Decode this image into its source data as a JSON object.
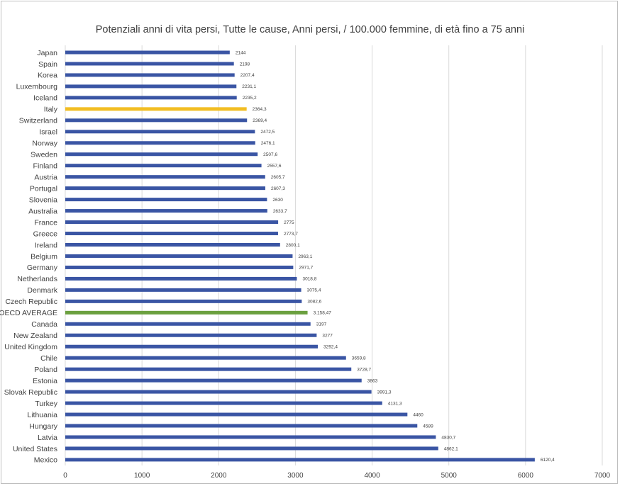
{
  "chart_data": {
    "type": "bar",
    "orientation": "horizontal",
    "title": "Potenziali anni di vita persi, Tutte le cause, Anni persi, / 100.000 femmine, di età fino a 75 anni",
    "xlim": [
      0,
      7000
    ],
    "x_ticks": [
      "0",
      "1000",
      "2000",
      "3000",
      "4000",
      "5000",
      "6000",
      "7000"
    ],
    "grid": "vertical",
    "colors": {
      "default": "#3a55a4",
      "italy": "#f2bd22",
      "oecd": "#6ba03f"
    },
    "categories": [
      "Japan",
      "Spain",
      "Korea",
      "Luxembourg",
      "Iceland",
      "Italy",
      "Switzerland",
      "Israel",
      "Norway",
      "Sweden",
      "Finland",
      "Austria",
      "Portugal",
      "Slovenia",
      "Australia",
      "France",
      "Greece",
      "Ireland",
      "Belgium",
      "Germany",
      "Netherlands",
      "Denmark",
      "Czech Republic",
      "OECD AVERAGE",
      "Canada",
      "New Zealand",
      "United Kingdom",
      "Chile",
      "Poland",
      "Estonia",
      "Slovak Republic",
      "Turkey",
      "Lithuania",
      "Hungary",
      "Latvia",
      "United States",
      "Mexico"
    ],
    "values": [
      2144,
      2198,
      2207.4,
      2231.1,
      2235.2,
      2364.3,
      2369.4,
      2472.5,
      2476.1,
      2507.6,
      2557.6,
      2605.7,
      2607.3,
      2630,
      2633.7,
      2775,
      2773.7,
      2800.1,
      2963.1,
      2971.7,
      3018.8,
      3075.4,
      3082.6,
      3158.47,
      3197,
      3277,
      3292.4,
      3659.8,
      3728.7,
      3863,
      3991.3,
      4131.3,
      4460,
      4589,
      4830.7,
      4862.1,
      6120.4
    ],
    "value_labels": [
      "2144",
      "2198",
      "2207,4",
      "2231,1",
      "2235,2",
      "2364,3",
      "2369,4",
      "2472,5",
      "2476,1",
      "2507,6",
      "2557,6",
      "2605,7",
      "2607,3",
      "2630",
      "2633,7",
      "2775",
      "2773,7",
      "2800,1",
      "2963,1",
      "2971,7",
      "3018,8",
      "3075,4",
      "3082,6",
      "3.158,47",
      "3197",
      "3277",
      "3292,4",
      "3659,8",
      "3728,7",
      "3863",
      "3991,3",
      "4131,3",
      "4460",
      "4589",
      "4830,7",
      "4862,1",
      "6120,4"
    ],
    "highlight": {
      "Italy": "italy",
      "OECD AVERAGE": "oecd"
    }
  }
}
